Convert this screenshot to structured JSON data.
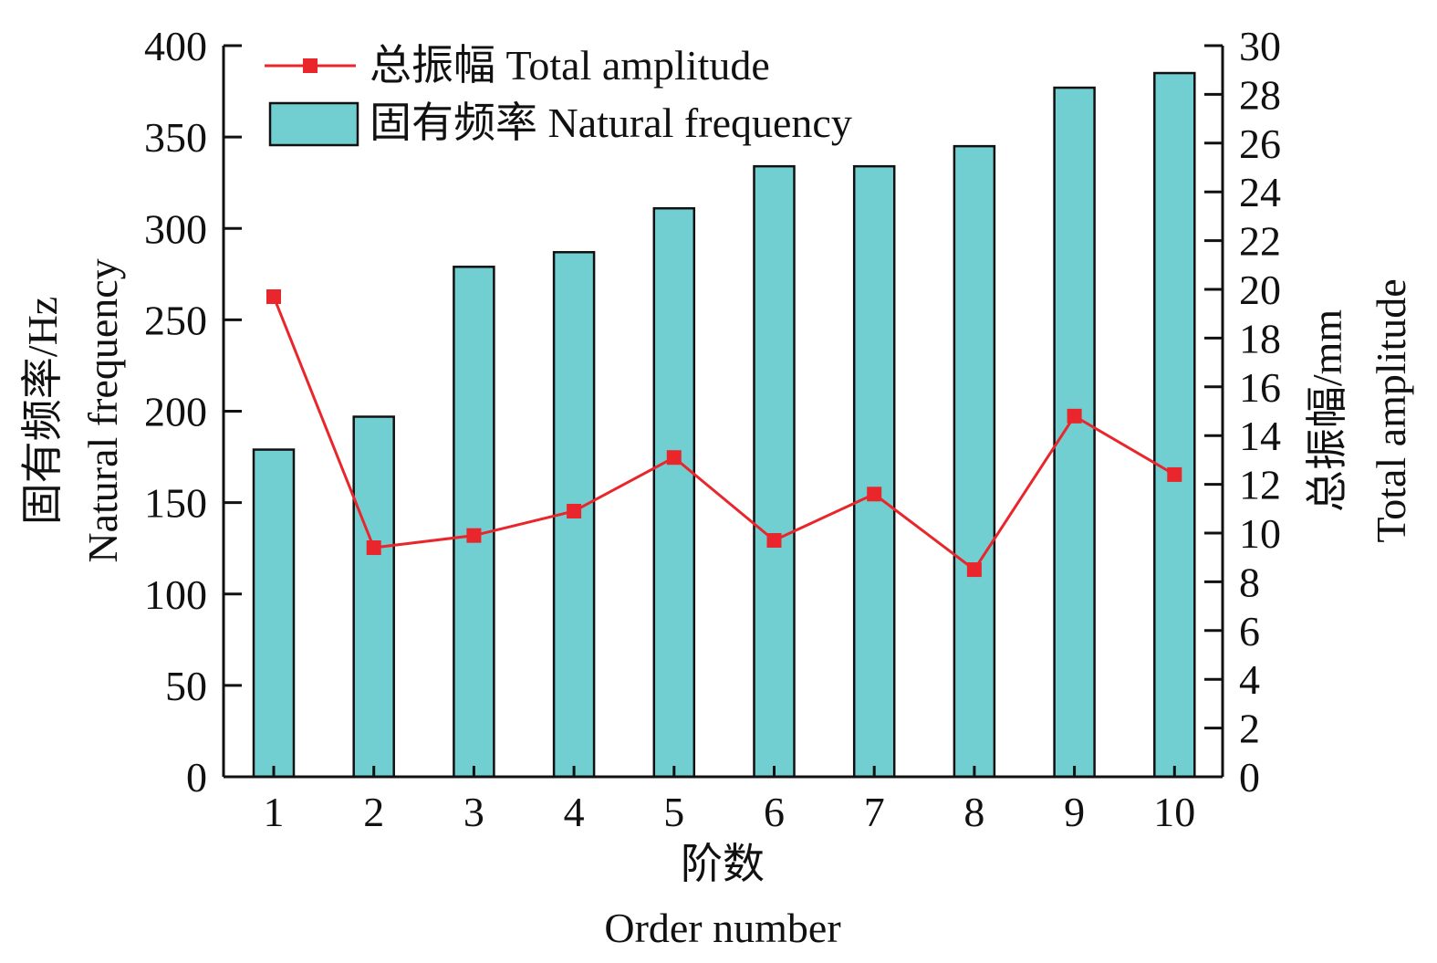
{
  "chart_data": {
    "type": "bar",
    "categories": [
      "1",
      "2",
      "3",
      "4",
      "5",
      "6",
      "7",
      "8",
      "9",
      "10"
    ],
    "series": [
      {
        "name": "固有频率 Natural frequency",
        "kind": "bar",
        "axis": "left",
        "color": "#72CFD1",
        "values": [
          179,
          197,
          279,
          287,
          311,
          334,
          334,
          345,
          377,
          385
        ]
      },
      {
        "name": "总振幅 Total amplitude",
        "kind": "line",
        "axis": "right",
        "color": "#E8262B",
        "values": [
          19.7,
          9.4,
          9.9,
          10.9,
          13.1,
          9.7,
          11.6,
          8.5,
          14.8,
          12.4
        ]
      }
    ],
    "ylim": [
      0,
      400
    ],
    "yticks": [
      0,
      50,
      100,
      150,
      200,
      250,
      300,
      350,
      400
    ],
    "y2lim": [
      0,
      30
    ],
    "y2ticks": [
      0,
      2,
      4,
      6,
      8,
      10,
      12,
      14,
      16,
      18,
      20,
      22,
      24,
      26,
      28,
      30
    ],
    "xlabel_cn": "阶数",
    "xlabel_en": "Order number",
    "ylabel_cn": "固有频率/Hz",
    "ylabel_en": "Natural frequency",
    "y2label_cn": "总振幅/mm",
    "y2label_en": "Total amplitude",
    "legend_position": "top-left",
    "grid": false
  }
}
